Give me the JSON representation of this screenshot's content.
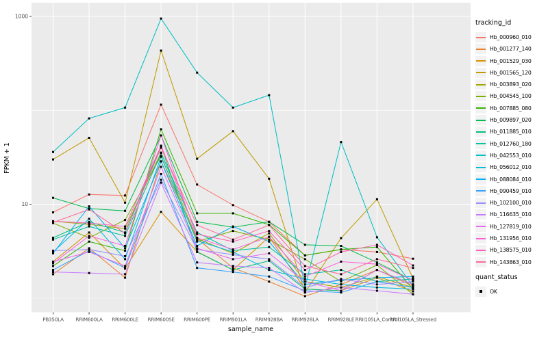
{
  "figure": {
    "background": "#FFFFFF",
    "panel_background": "#EBEBEB",
    "grid_color": "#FFFFFF",
    "axis_text_color": "#4D4D4D",
    "axis_title_color": "#000000",
    "point_color": "#000000",
    "legend_key_fill": "#F2F2F2"
  },
  "chart_data": {
    "type": "line",
    "title": "",
    "xlabel": "sample_name",
    "ylabel": "FPKM + 1",
    "y_scale": "log10",
    "ylim": [
      0.9,
      1100
    ],
    "y_ticks": [
      {
        "label": "1000",
        "value": 1000
      },
      {
        "label": "10",
        "value": 10
      }
    ],
    "y_minor_gridlines": [
      100,
      1
    ],
    "grid": true,
    "legend_position": "right",
    "legend_title": "tracking_id",
    "legend2_title": "quant_status",
    "legend2_items": [
      {
        "label": "OK",
        "marker": "square"
      }
    ],
    "point_shape": "square",
    "categories": [
      "PB350LA",
      "RRIM600LA",
      "RRIM600LE",
      "RRIM600SE",
      "RRIM600PE",
      "RRIM901LA",
      "RRIM928BA",
      "RRIM928LA",
      "RRIM928LE",
      "RRII105LA_Control",
      "RRII105LA_Stressed"
    ],
    "series": [
      {
        "name": "Hb_000960_010",
        "color": "#F8766D",
        "values": [
          8.2,
          12.7,
          12.4,
          115,
          16.2,
          9.8,
          6.5,
          2.85,
          3.3,
          3.1,
          2.63
        ]
      },
      {
        "name": "Hb_001277_140",
        "color": "#EA8331",
        "values": [
          1.8,
          3.4,
          1.65,
          28.6,
          4.3,
          2.1,
          1.5,
          1.05,
          1.4,
          2.0,
          1.35
        ]
      },
      {
        "name": "Hb_001529_030",
        "color": "#D89000",
        "values": [
          2.45,
          5.0,
          2.06,
          8.3,
          3.13,
          2.0,
          4.5,
          1.25,
          1.2,
          1.65,
          1.18
        ]
      },
      {
        "name": "Hb_001565_120",
        "color": "#C09B00",
        "values": [
          30,
          51,
          10.4,
          432,
          30.5,
          60,
          18.7,
          1.15,
          4.35,
          11.3,
          1.62
        ]
      },
      {
        "name": "Hb_003893_020",
        "color": "#A3A500",
        "values": [
          6.6,
          6.1,
          5.5,
          35.5,
          4.3,
          3.0,
          4.9,
          1.5,
          1.3,
          1.7,
          1.3
        ]
      },
      {
        "name": "Hb_004545_100",
        "color": "#7CAE00",
        "values": [
          6.3,
          4.4,
          6.8,
          32.6,
          4.0,
          5.2,
          4.2,
          2.6,
          1.5,
          2.25,
          1.1
        ]
      },
      {
        "name": "Hb_007885_080",
        "color": "#39B600",
        "values": [
          2.2,
          4.0,
          3.2,
          63,
          8.0,
          8.0,
          6.05,
          2.85,
          3.3,
          3.5,
          1.25
        ]
      },
      {
        "name": "Hb_009897_020",
        "color": "#00BB4E",
        "values": [
          11.7,
          9.0,
          8.5,
          54,
          6.5,
          5.7,
          6.5,
          3.7,
          3.6,
          2.4,
          1.55
        ]
      },
      {
        "name": "Hb_011885_010",
        "color": "#00BF7D",
        "values": [
          4.4,
          6.5,
          5.0,
          42,
          3.1,
          2.0,
          2.5,
          1.25,
          1.2,
          2.0,
          1.4
        ]
      },
      {
        "name": "Hb_012760_180",
        "color": "#00C1A3",
        "values": [
          4.2,
          5.8,
          4.6,
          35,
          5.0,
          3.2,
          3.5,
          1.8,
          2.0,
          1.5,
          1.6
        ]
      },
      {
        "name": "Hb_042553_010",
        "color": "#00BFC4",
        "values": [
          36,
          82,
          107,
          950,
          252,
          107,
          145,
          1.3,
          46,
          4.45,
          1.35
        ]
      },
      {
        "name": "Hb_056012_010",
        "color": "#00BAE0",
        "values": [
          3.1,
          7.0,
          2.6,
          32,
          4.1,
          3.1,
          2.0,
          1.6,
          1.4,
          1.3,
          1.25
        ]
      },
      {
        "name": "Hb_088084_010",
        "color": "#00B0F6",
        "values": [
          3.0,
          9.5,
          3.4,
          28.6,
          3.6,
          5.8,
          4.0,
          1.4,
          1.55,
          1.65,
          1.7
        ]
      },
      {
        "name": "Hb_090459_010",
        "color": "#35A2FF",
        "values": [
          2.0,
          3.2,
          2.1,
          21,
          2.1,
          1.9,
          1.7,
          1.2,
          1.15,
          1.5,
          1.3
        ]
      },
      {
        "name": "Hb_102100_010",
        "color": "#9590FF",
        "values": [
          3.2,
          3.3,
          2.8,
          18.2,
          3.3,
          2.9,
          2.6,
          1.3,
          1.6,
          1.4,
          1.5
        ]
      },
      {
        "name": "Hb_116635_010",
        "color": "#C77CFF",
        "values": [
          1.9,
          1.85,
          1.8,
          17,
          2.4,
          2.2,
          2.1,
          1.15,
          1.3,
          1.2,
          1.1
        ]
      },
      {
        "name": "Hb_127819_010",
        "color": "#E76BF3",
        "values": [
          2.45,
          3.1,
          2.2,
          25,
          3.4,
          2.6,
          3.0,
          1.5,
          1.2,
          2.0,
          1.4
        ]
      },
      {
        "name": "Hb_131956_010",
        "color": "#FA62DB",
        "values": [
          2.35,
          4.6,
          3.6,
          54,
          4.4,
          3.3,
          4.5,
          1.7,
          2.45,
          2.3,
          1.55
        ]
      },
      {
        "name": "Hb_138575_010",
        "color": "#FF62BC",
        "values": [
          6.6,
          6.3,
          5.8,
          42,
          4.8,
          4.0,
          5.2,
          2.0,
          3.1,
          3.7,
          2.23
        ]
      },
      {
        "name": "Hb_143863_010",
        "color": "#FF6A98",
        "values": [
          6.4,
          8.8,
          4.9,
          40,
          6.0,
          4.2,
          6.0,
          2.2,
          1.8,
          2.6,
          2.1
        ]
      }
    ]
  }
}
